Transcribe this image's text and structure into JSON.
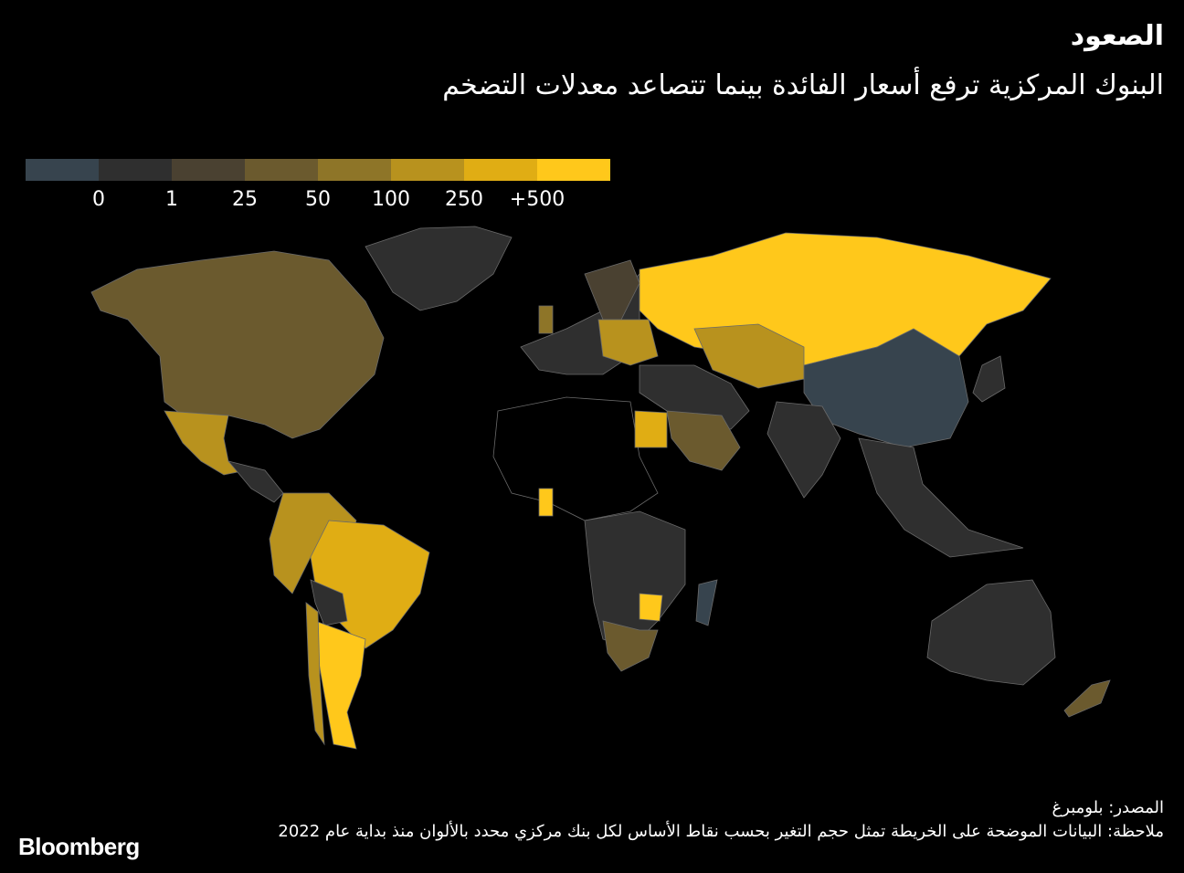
{
  "header": {
    "title": "الصعود",
    "subtitle": "البنوك المركزية ترفع أسعار الفائدة بينما تتصاعد معدلات التضخم"
  },
  "legend": {
    "colors": [
      "#37444e",
      "#2f2f2f",
      "#4a4131",
      "#6b5a2e",
      "#8e7528",
      "#b8921e",
      "#e0ad14",
      "#ffc81b"
    ],
    "labels": [
      "0",
      "1",
      "25",
      "50",
      "100",
      "250",
      "+500"
    ]
  },
  "map_data": {
    "regions": [
      {
        "name": "North America",
        "category": "50"
      },
      {
        "name": "Mexico",
        "category": "250"
      },
      {
        "name": "Brazil",
        "category": "250"
      },
      {
        "name": "Argentina",
        "category": "+500"
      },
      {
        "name": "Russia",
        "category": "+500"
      },
      {
        "name": "China",
        "category": "0"
      },
      {
        "name": "Australia",
        "category": "1"
      },
      {
        "name": "Egypt",
        "category": "250"
      },
      {
        "name": "Ghana",
        "category": "+500"
      },
      {
        "name": "Zimbabwe",
        "category": "+500"
      },
      {
        "name": "Saudi Arabia",
        "category": "50"
      },
      {
        "name": "Central Asia",
        "category": "250"
      }
    ]
  },
  "footer": {
    "source": "المصدر: بلومبرغ",
    "note": "ملاحظة: البيانات الموضحة على الخريطة تمثل حجم التغير بحسب نقاط الأساس لكل بنك مركزي محدد بالألوان منذ بداية عام 2022",
    "logo": "Bloomberg"
  }
}
